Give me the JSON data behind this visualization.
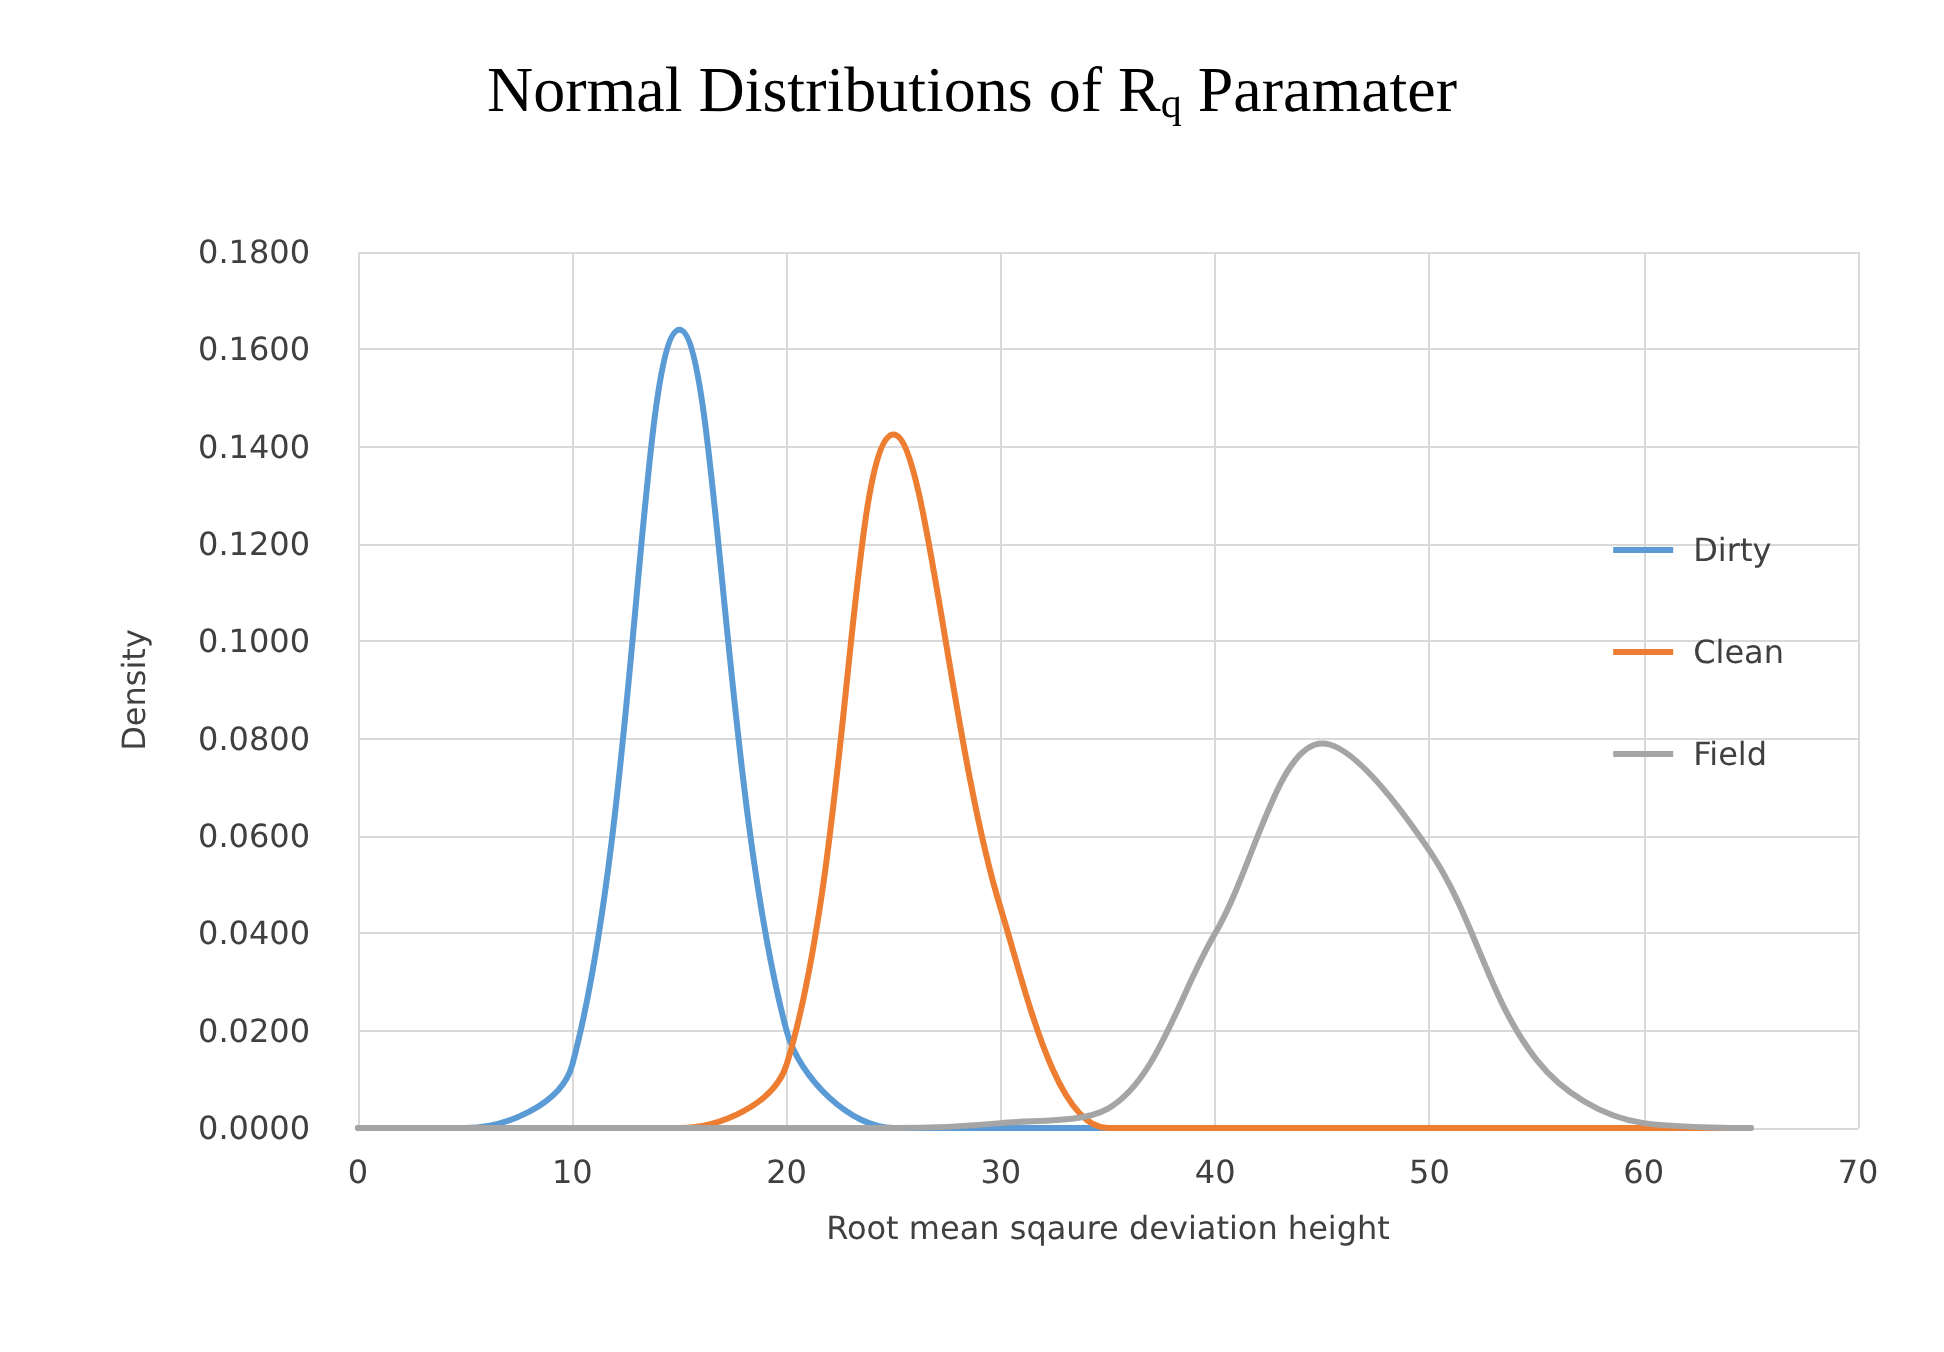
{
  "chart_data": {
    "type": "line",
    "title": "Normal Distributions of R$_{q}$ Paramater",
    "xlabel": "Root mean sqaure deviation height",
    "ylabel": "Density",
    "x": [
      0,
      5,
      10,
      15,
      20,
      25,
      30,
      35,
      40,
      45,
      50,
      55,
      60,
      65
    ],
    "series": [
      {
        "name": "Dirty",
        "color": "#5b9bd5",
        "values": [
          0,
          0,
          0.013,
          0.164,
          0.02,
          0,
          0,
          0,
          0,
          null,
          null,
          null,
          null,
          null
        ]
      },
      {
        "name": "Clean",
        "color": "#ed7d31",
        "values": [
          null,
          null,
          0,
          0,
          0.013,
          0.1425,
          0.045,
          0,
          0,
          0,
          0,
          0,
          0,
          0
        ]
      },
      {
        "name": "Field",
        "color": "#a5a5a5",
        "values": [
          0,
          0,
          0,
          0,
          0,
          0,
          0.001,
          0.004,
          0.04,
          0.079,
          0.057,
          0.014,
          0.001,
          0
        ]
      }
    ],
    "xlim": [
      0,
      70
    ],
    "xticks": [
      0,
      10,
      20,
      30,
      40,
      50,
      60,
      70
    ],
    "ylim": [
      0,
      0.18
    ],
    "yticks": [
      {
        "value": 0,
        "label": "0.0000"
      },
      {
        "value": 0.02,
        "label": "0.0200"
      },
      {
        "value": 0.04,
        "label": "0.0400"
      },
      {
        "value": 0.06,
        "label": "0.0600"
      },
      {
        "value": 0.08,
        "label": "0.0800"
      },
      {
        "value": 0.1,
        "label": "0.1000"
      },
      {
        "value": 0.12,
        "label": "0.1200"
      },
      {
        "value": 0.14,
        "label": "0.1400"
      },
      {
        "value": 0.16,
        "label": "0.1600"
      },
      {
        "value": 0.18,
        "label": "0.1800"
      }
    ],
    "grid": true,
    "legend": "right",
    "marker": "none",
    "line_style": "solid"
  }
}
